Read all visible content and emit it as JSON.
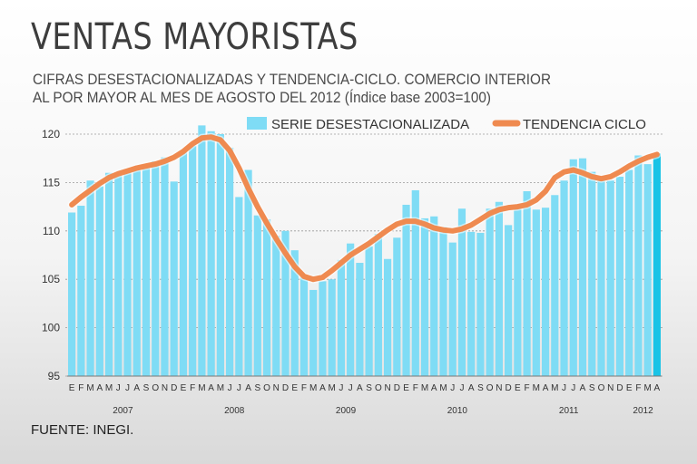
{
  "title": "VENTAS MAYORISTAS",
  "subtitle": {
    "line1": "CIFRAS DESESTACIONALIZADAS Y TENDENCIA-CICLO. COMERCIO INTERIOR",
    "line2": "AL POR MAYOR AL MES DE AGOSTO DEL 2012 (Índice base 2003=100)"
  },
  "source": "FUENTE: INEGI.",
  "colors": {
    "bars": "#7fdcf5",
    "last_bar": "#19c3e6",
    "trend": "#ef8a50",
    "grid": "#9a9a9a"
  },
  "chart_data": {
    "type": "bar+line",
    "title": "VENTAS MAYORISTAS",
    "ylim": [
      95,
      120
    ],
    "yticks": [
      95,
      100,
      105,
      110,
      115,
      120
    ],
    "legend": {
      "placement": "top-right",
      "entries": [
        "SERIE DESESTACIONALIZADA",
        "TENDENCIA CICLO"
      ]
    },
    "month_letters": [
      "E",
      "F",
      "M",
      "A",
      "M",
      "J",
      "J",
      "A",
      "S",
      "O",
      "N",
      "D"
    ],
    "years": [
      "2007",
      "2008",
      "2009",
      "2010",
      "2011",
      "2012"
    ],
    "series": [
      {
        "name": "SERIE DESESTACIONALIZADA",
        "type": "bar",
        "values": [
          111.9,
          112.6,
          115.2,
          114.6,
          116.0,
          115.8,
          116.4,
          116.5,
          116.6,
          117.2,
          117.6,
          115.1,
          118.3,
          118.8,
          120.9,
          120.3,
          120.0,
          118.6,
          113.5,
          116.3,
          111.6,
          111.2,
          109.5,
          110.0,
          108.0,
          105.3,
          103.9,
          104.8,
          105.0,
          107.0,
          108.7,
          106.7,
          108.4,
          109.7,
          107.1,
          109.3,
          112.7,
          114.2,
          111.3,
          111.5,
          110.4,
          108.8,
          112.3,
          109.9,
          109.8,
          112.3,
          113.0,
          110.6,
          112.5,
          114.1,
          112.2,
          112.4,
          113.7,
          115.2,
          117.4,
          117.5,
          116.1,
          115.3,
          115.2,
          115.6,
          116.3,
          117.8,
          116.9,
          118.0
        ]
      },
      {
        "name": "TENDENCIA CICLO",
        "type": "line",
        "values": [
          112.7,
          113.5,
          114.2,
          114.9,
          115.5,
          115.9,
          116.2,
          116.5,
          116.7,
          116.9,
          117.2,
          117.6,
          118.2,
          119.0,
          119.6,
          119.7,
          119.4,
          118.3,
          116.5,
          114.4,
          112.5,
          110.8,
          109.2,
          107.7,
          106.3,
          105.3,
          105.0,
          105.2,
          105.9,
          106.7,
          107.5,
          108.1,
          108.7,
          109.4,
          110.1,
          110.7,
          111.0,
          111.0,
          110.7,
          110.3,
          110.1,
          110.0,
          110.2,
          110.6,
          111.2,
          111.8,
          112.2,
          112.4,
          112.5,
          112.7,
          113.2,
          114.1,
          115.5,
          116.1,
          116.3,
          116.0,
          115.6,
          115.4,
          115.6,
          116.1,
          116.7,
          117.2,
          117.6,
          117.9
        ]
      }
    ]
  }
}
